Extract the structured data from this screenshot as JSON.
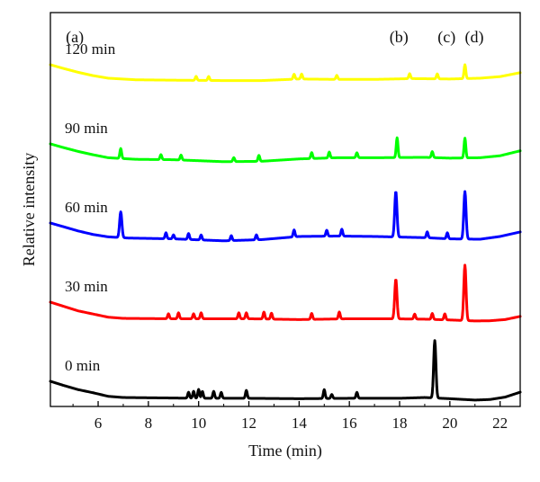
{
  "chart_data": {
    "type": "line",
    "xlabel": "Time (min)",
    "ylabel": "Relative intensity",
    "xlim": [
      4.1,
      22.8
    ],
    "xticks": [
      6,
      8,
      10,
      12,
      14,
      16,
      18,
      20,
      22
    ],
    "peak_labels": [
      {
        "text": "(a)",
        "x": 5.0
      },
      {
        "text": "(b)",
        "x": 17.9
      },
      {
        "text": "(c)",
        "x": 19.8
      },
      {
        "text": "(d)",
        "x": 20.9
      }
    ],
    "series": [
      {
        "name": "0 min",
        "color": "#000000",
        "offset": 0,
        "baseline": [
          [
            4.1,
            1.0
          ],
          [
            4.6,
            0.8
          ],
          [
            5.2,
            0.58
          ],
          [
            5.8,
            0.42
          ],
          [
            6.4,
            0.24
          ],
          [
            7.0,
            0.18
          ],
          [
            8.5,
            0.16
          ],
          [
            10,
            0.14
          ],
          [
            12,
            0.14
          ],
          [
            14,
            0.12
          ],
          [
            16,
            0.14
          ],
          [
            18,
            0.14
          ],
          [
            19,
            0.18
          ],
          [
            20,
            0.12
          ],
          [
            21,
            0.05
          ],
          [
            21.6,
            0.08
          ],
          [
            22.2,
            0.2
          ],
          [
            22.8,
            0.45
          ]
        ],
        "peaks": [
          [
            9.6,
            0.3
          ],
          [
            9.8,
            0.35
          ],
          [
            10.0,
            0.45
          ],
          [
            10.15,
            0.35
          ],
          [
            10.6,
            0.35
          ],
          [
            10.9,
            0.3
          ],
          [
            11.9,
            0.4
          ],
          [
            15.0,
            0.45
          ],
          [
            15.3,
            0.2
          ],
          [
            16.3,
            0.3
          ],
          [
            19.4,
            2.9
          ]
        ]
      },
      {
        "name": "30 min",
        "color": "#ff0000",
        "offset": 4.0,
        "baseline": [
          [
            4.1,
            1.0
          ],
          [
            4.6,
            0.8
          ],
          [
            5.2,
            0.56
          ],
          [
            5.8,
            0.4
          ],
          [
            6.4,
            0.24
          ],
          [
            7.0,
            0.18
          ],
          [
            9,
            0.16
          ],
          [
            12,
            0.16
          ],
          [
            14,
            0.12
          ],
          [
            16,
            0.16
          ],
          [
            17.5,
            0.16
          ],
          [
            19,
            0.14
          ],
          [
            20,
            0.1
          ],
          [
            21,
            0.05
          ],
          [
            21.6,
            0.06
          ],
          [
            22.2,
            0.12
          ],
          [
            22.8,
            0.28
          ]
        ],
        "peaks": [
          [
            8.8,
            0.25
          ],
          [
            9.2,
            0.3
          ],
          [
            9.8,
            0.25
          ],
          [
            10.1,
            0.3
          ],
          [
            11.6,
            0.3
          ],
          [
            11.9,
            0.3
          ],
          [
            12.6,
            0.35
          ],
          [
            12.9,
            0.3
          ],
          [
            14.5,
            0.3
          ],
          [
            15.6,
            0.35
          ],
          [
            17.85,
            2.0
          ],
          [
            18.6,
            0.25
          ],
          [
            19.3,
            0.3
          ],
          [
            19.8,
            0.3
          ],
          [
            20.6,
            2.8
          ]
        ]
      },
      {
        "name": "60 min",
        "color": "#0000ff",
        "offset": 8.0,
        "baseline": [
          [
            4.1,
            1.0
          ],
          [
            4.6,
            0.82
          ],
          [
            5.2,
            0.6
          ],
          [
            5.8,
            0.42
          ],
          [
            6.4,
            0.3
          ],
          [
            7.2,
            0.24
          ],
          [
            9,
            0.2
          ],
          [
            11,
            0.1
          ],
          [
            12.5,
            0.16
          ],
          [
            14,
            0.32
          ],
          [
            15.5,
            0.34
          ],
          [
            17,
            0.32
          ],
          [
            19,
            0.26
          ],
          [
            20,
            0.2
          ],
          [
            21.2,
            0.18
          ],
          [
            22,
            0.32
          ],
          [
            22.8,
            0.55
          ]
        ],
        "peaks": [
          [
            6.9,
            1.3
          ],
          [
            8.7,
            0.3
          ],
          [
            9.0,
            0.2
          ],
          [
            9.6,
            0.3
          ],
          [
            10.1,
            0.25
          ],
          [
            11.3,
            0.25
          ],
          [
            12.3,
            0.25
          ],
          [
            13.8,
            0.35
          ],
          [
            15.1,
            0.3
          ],
          [
            15.7,
            0.35
          ],
          [
            17.85,
            2.3
          ],
          [
            19.1,
            0.3
          ],
          [
            19.9,
            0.3
          ],
          [
            20.6,
            2.4
          ]
        ]
      },
      {
        "name": "90 min",
        "color": "#00ff00",
        "offset": 12.0,
        "baseline": [
          [
            4.1,
            1.0
          ],
          [
            4.6,
            0.82
          ],
          [
            5.2,
            0.62
          ],
          [
            5.8,
            0.45
          ],
          [
            6.4,
            0.3
          ],
          [
            7.5,
            0.22
          ],
          [
            9,
            0.2
          ],
          [
            11,
            0.1
          ],
          [
            12.5,
            0.12
          ],
          [
            14,
            0.24
          ],
          [
            15.5,
            0.3
          ],
          [
            17,
            0.3
          ],
          [
            19,
            0.32
          ],
          [
            20,
            0.28
          ],
          [
            21.2,
            0.3
          ],
          [
            22,
            0.4
          ],
          [
            22.8,
            0.65
          ]
        ],
        "peaks": [
          [
            6.9,
            0.5
          ],
          [
            8.5,
            0.25
          ],
          [
            9.3,
            0.25
          ],
          [
            11.4,
            0.2
          ],
          [
            12.4,
            0.3
          ],
          [
            14.5,
            0.3
          ],
          [
            15.2,
            0.3
          ],
          [
            16.3,
            0.25
          ],
          [
            17.9,
            1.0
          ],
          [
            19.3,
            0.3
          ],
          [
            20.6,
            1.0
          ]
        ]
      },
      {
        "name": "120 min",
        "color": "#ffff00",
        "offset": 16.0,
        "baseline": [
          [
            4.1,
            1.0
          ],
          [
            4.6,
            0.82
          ],
          [
            5.2,
            0.62
          ],
          [
            5.8,
            0.45
          ],
          [
            6.4,
            0.32
          ],
          [
            7.5,
            0.24
          ],
          [
            9,
            0.22
          ],
          [
            11,
            0.2
          ],
          [
            12.5,
            0.2
          ],
          [
            14,
            0.28
          ],
          [
            15.5,
            0.26
          ],
          [
            17,
            0.26
          ],
          [
            18.5,
            0.3
          ],
          [
            20,
            0.28
          ],
          [
            21.2,
            0.32
          ],
          [
            22,
            0.4
          ],
          [
            22.8,
            0.6
          ]
        ],
        "peaks": [
          [
            9.9,
            0.2
          ],
          [
            10.4,
            0.2
          ],
          [
            13.8,
            0.25
          ],
          [
            14.1,
            0.25
          ],
          [
            15.5,
            0.2
          ],
          [
            18.4,
            0.25
          ],
          [
            19.5,
            0.25
          ],
          [
            20.6,
            0.7
          ]
        ]
      }
    ]
  }
}
